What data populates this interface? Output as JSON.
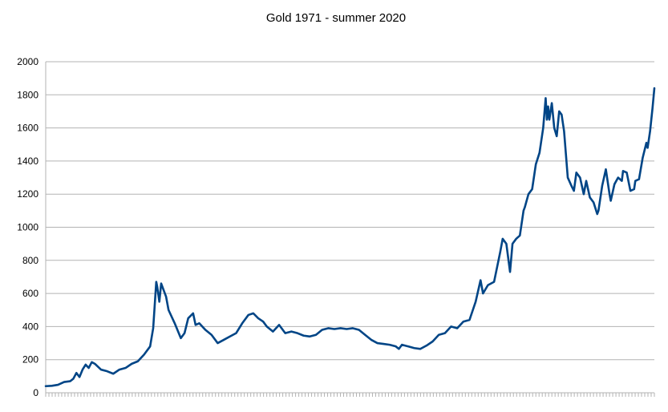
{
  "chart_data": {
    "type": "line",
    "title": "Gold 1971 - summer 2020",
    "xlabel": "",
    "ylabel": "",
    "ylim": [
      0,
      2000
    ],
    "yticks": [
      0,
      200,
      400,
      600,
      800,
      1000,
      1200,
      1400,
      1600,
      1800,
      2000
    ],
    "ytick_labels": [
      "0",
      "200",
      "400",
      "600",
      "800",
      "1000",
      "1200",
      "1400",
      "1600",
      "1800",
      "2000"
    ],
    "grid": "horizontal",
    "legend": "none",
    "colors": {
      "line": "#004586",
      "grid": "#b3b3b3",
      "axis": "#b3b3b3"
    },
    "x": [
      1971.0,
      1971.5,
      1972.0,
      1972.5,
      1973.0,
      1973.25,
      1973.5,
      1973.75,
      1974.0,
      1974.25,
      1974.5,
      1974.75,
      1975.0,
      1975.5,
      1976.0,
      1976.5,
      1977.0,
      1977.5,
      1978.0,
      1978.5,
      1979.0,
      1979.5,
      1979.75,
      1980.0,
      1980.08,
      1980.25,
      1980.4,
      1980.6,
      1980.8,
      1981.0,
      1981.5,
      1982.0,
      1982.3,
      1982.6,
      1983.0,
      1983.2,
      1983.5,
      1984.0,
      1984.5,
      1985.0,
      1985.5,
      1986.0,
      1986.5,
      1987.0,
      1987.5,
      1987.9,
      1988.3,
      1988.7,
      1989.0,
      1989.5,
      1990.0,
      1990.5,
      1991.0,
      1991.5,
      1992.0,
      1992.5,
      1993.0,
      1993.5,
      1994.0,
      1994.5,
      1995.0,
      1995.5,
      1996.0,
      1996.5,
      1997.0,
      1997.5,
      1998.0,
      1998.5,
      1999.0,
      1999.5,
      1999.75,
      2000.0,
      2000.5,
      2001.0,
      2001.5,
      2002.0,
      2002.5,
      2003.0,
      2003.5,
      2004.0,
      2004.5,
      2005.0,
      2005.5,
      2006.0,
      2006.4,
      2006.6,
      2007.0,
      2007.5,
      2008.0,
      2008.2,
      2008.5,
      2008.8,
      2009.0,
      2009.3,
      2009.6,
      2009.9,
      2010.0,
      2010.3,
      2010.6,
      2010.9,
      2011.2,
      2011.5,
      2011.7,
      2011.8,
      2011.9,
      2012.0,
      2012.2,
      2012.4,
      2012.6,
      2012.8,
      2013.0,
      2013.2,
      2013.5,
      2013.8,
      2014.0,
      2014.2,
      2014.5,
      2014.8,
      2015.0,
      2015.3,
      2015.6,
      2015.9,
      2016.0,
      2016.3,
      2016.6,
      2016.9,
      2017.0,
      2017.3,
      2017.6,
      2017.9,
      2018.0,
      2018.3,
      2018.6,
      2018.9,
      2019.0,
      2019.3,
      2019.6,
      2019.9,
      2020.0,
      2020.2,
      2020.4,
      2020.55
    ],
    "series": [
      {
        "name": "",
        "values": [
          40,
          42,
          48,
          65,
          70,
          85,
          120,
          95,
          140,
          170,
          150,
          185,
          175,
          140,
          130,
          115,
          140,
          150,
          175,
          190,
          230,
          280,
          390,
          670,
          640,
          550,
          660,
          620,
          580,
          500,
          420,
          330,
          360,
          450,
          480,
          410,
          420,
          380,
          350,
          300,
          320,
          340,
          360,
          420,
          470,
          480,
          450,
          430,
          400,
          370,
          410,
          360,
          370,
          360,
          345,
          340,
          350,
          380,
          390,
          385,
          390,
          385,
          390,
          380,
          350,
          320,
          300,
          295,
          290,
          280,
          265,
          290,
          280,
          270,
          265,
          285,
          310,
          350,
          360,
          400,
          390,
          430,
          440,
          550,
          680,
          600,
          650,
          670,
          850,
          930,
          900,
          730,
          900,
          930,
          950,
          1100,
          1120,
          1200,
          1230,
          1380,
          1450,
          1600,
          1780,
          1650,
          1730,
          1650,
          1750,
          1600,
          1550,
          1700,
          1680,
          1580,
          1300,
          1250,
          1220,
          1330,
          1300,
          1200,
          1280,
          1180,
          1150,
          1080,
          1100,
          1250,
          1350,
          1200,
          1160,
          1260,
          1300,
          1280,
          1340,
          1330,
          1220,
          1230,
          1280,
          1290,
          1420,
          1510,
          1480,
          1580,
          1720,
          1840
        ]
      }
    ]
  }
}
